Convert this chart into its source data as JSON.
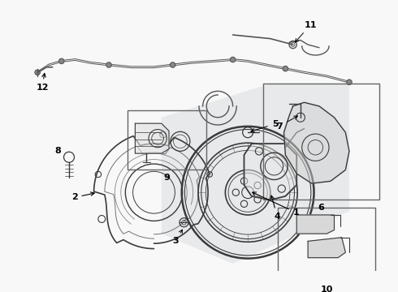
{
  "bg_color": "#f8f8f8",
  "line_color": "#3a3a3a",
  "label_color": "#000000",
  "figsize": [
    4.9,
    3.6
  ],
  "dpi": 100,
  "wire_color": "#555555",
  "box_line_color": "#666666",
  "shaded_color": "#d8dce0"
}
